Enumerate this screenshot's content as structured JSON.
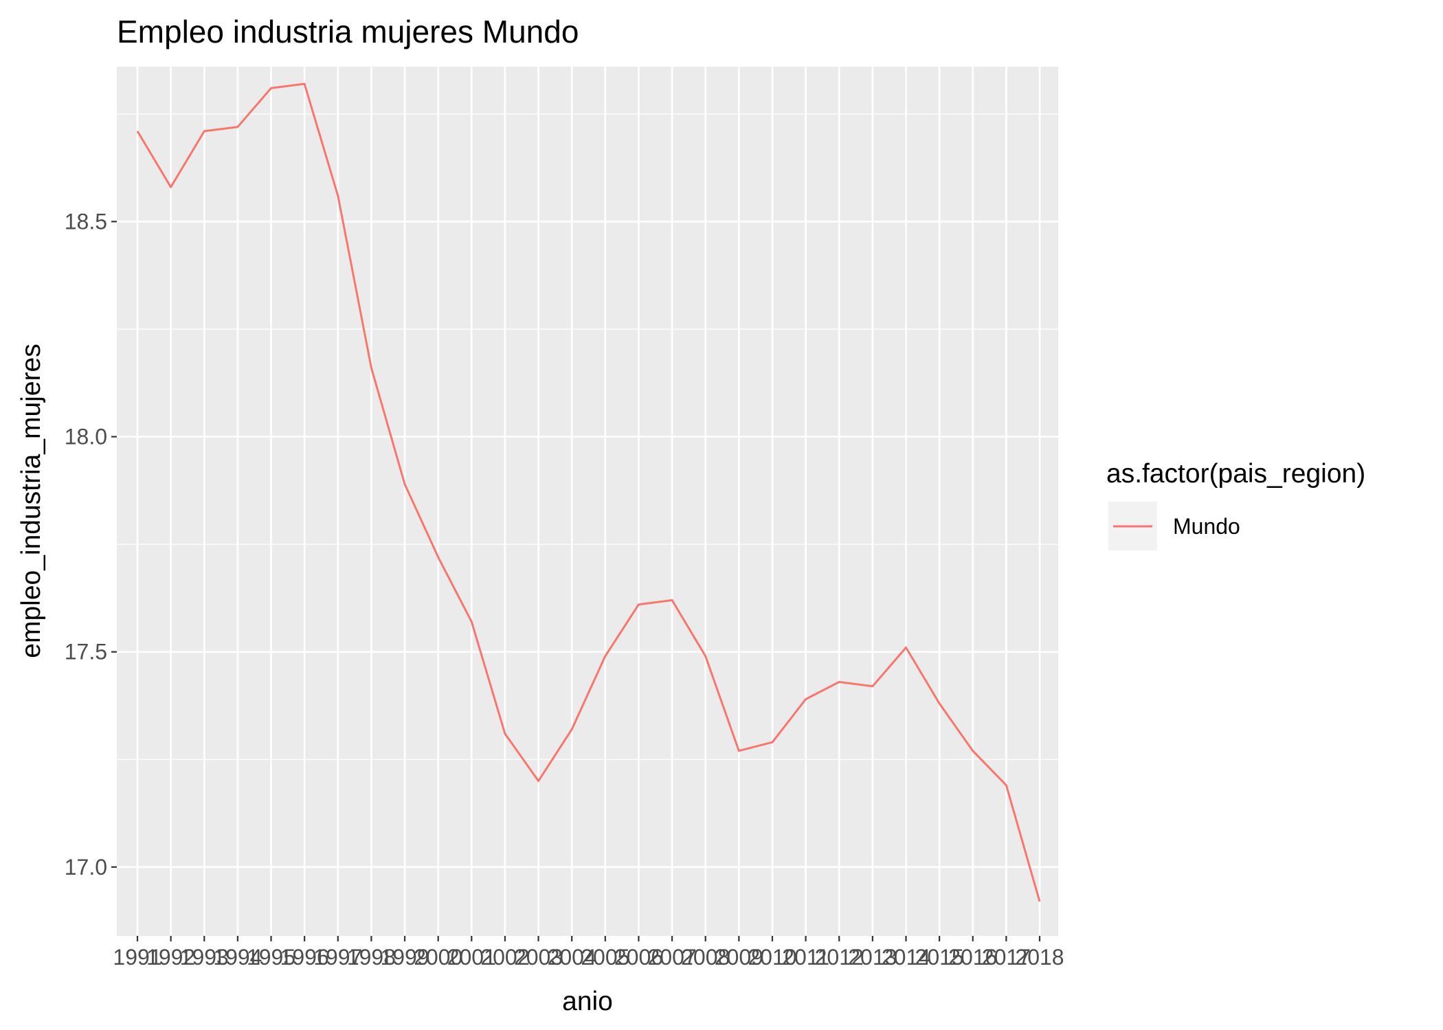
{
  "chart_data": {
    "type": "line",
    "title": "Empleo industria mujeres Mundo",
    "xlabel": "anio",
    "ylabel": "empleo_industria_mujeres",
    "categories": [
      "1991",
      "1992",
      "1993",
      "1994",
      "1995",
      "1996",
      "1997",
      "1998",
      "1999",
      "2000",
      "2001",
      "2002",
      "2003",
      "2004",
      "2005",
      "2006",
      "2007",
      "2008",
      "2009",
      "2010",
      "2011",
      "2012",
      "2013",
      "2014",
      "2015",
      "2016",
      "2017",
      "2018"
    ],
    "series": [
      {
        "name": "Mundo",
        "color": "#F8766D",
        "values": [
          18.71,
          18.58,
          18.71,
          18.72,
          18.81,
          18.82,
          18.56,
          18.16,
          17.89,
          17.72,
          17.57,
          17.31,
          17.2,
          17.32,
          17.49,
          17.61,
          17.62,
          17.49,
          17.27,
          17.29,
          17.39,
          17.43,
          17.42,
          17.51,
          17.38,
          17.27,
          17.19,
          16.92
        ]
      }
    ],
    "yticks": [
      17.0,
      17.5,
      18.0,
      18.5
    ],
    "ytick_labels": [
      "17.0",
      "17.5",
      "18.0",
      "18.5"
    ],
    "ylim": [
      16.84,
      18.86
    ],
    "grid": true,
    "panel_background": "#EBEBEB",
    "grid_color": "#FFFFFF",
    "legend": {
      "title": "as.factor(pais_region)",
      "position": "right",
      "entries": [
        "Mundo"
      ]
    }
  }
}
